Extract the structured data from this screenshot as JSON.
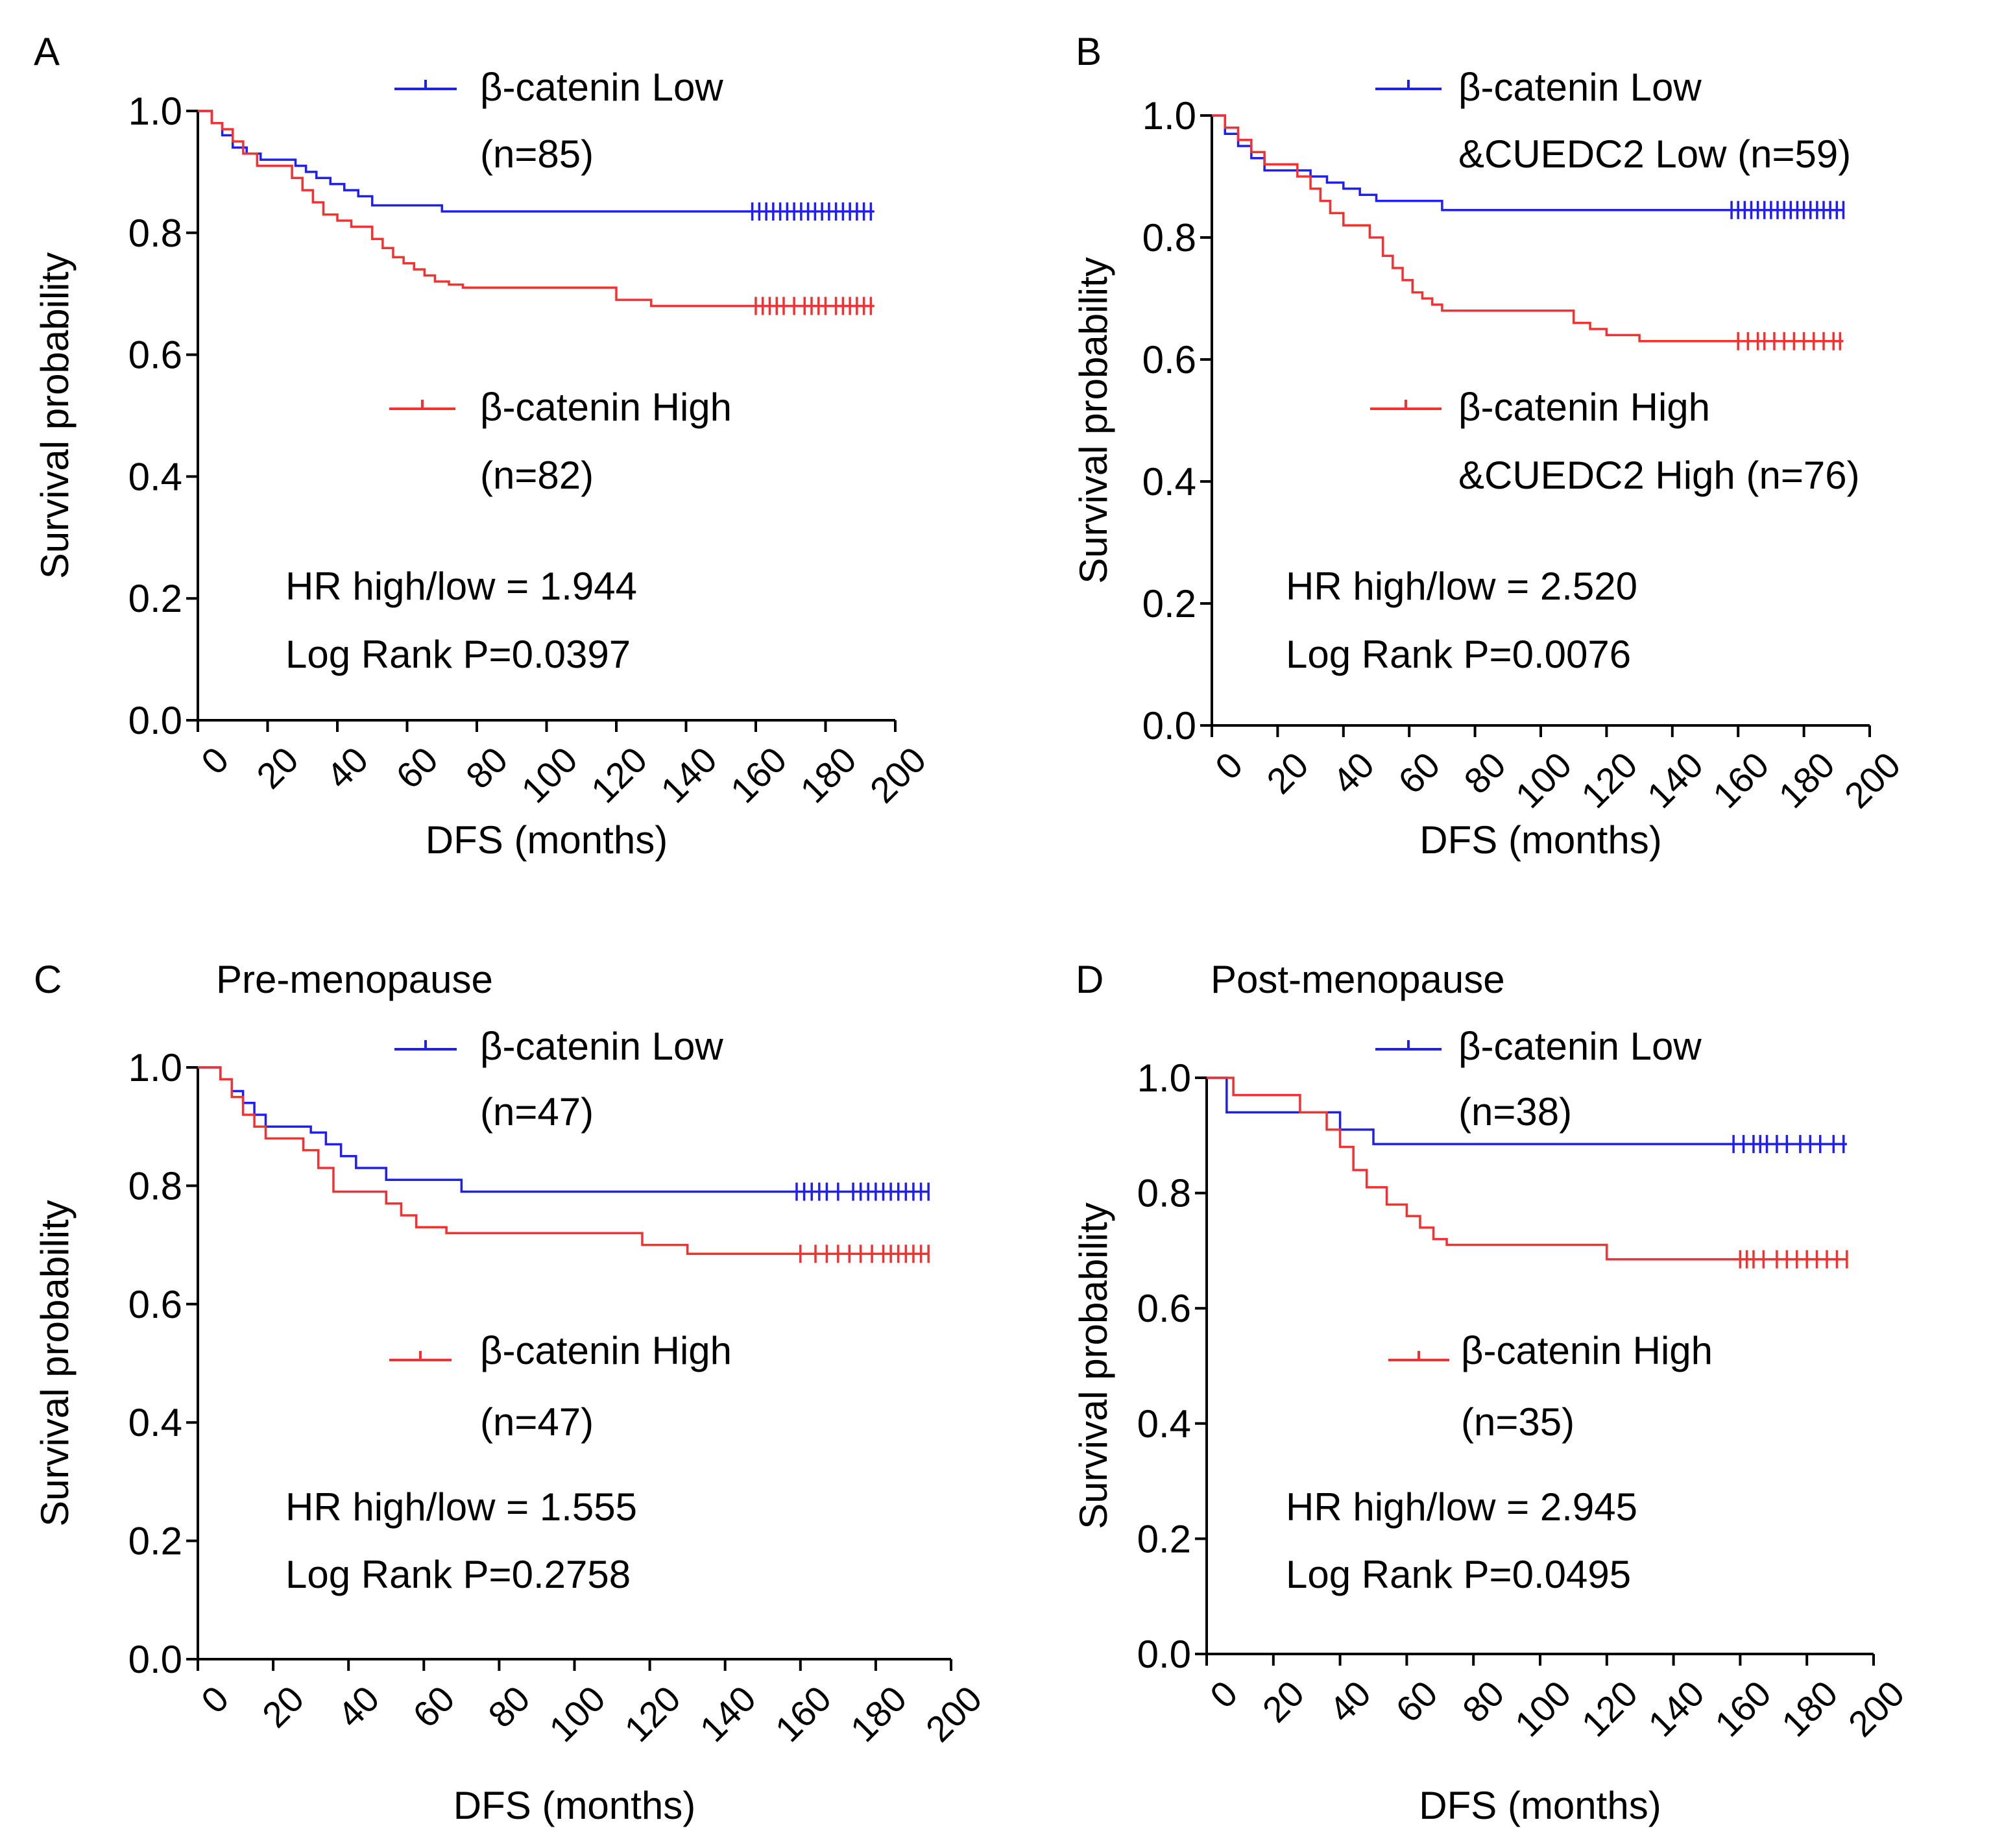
{
  "colors": {
    "low": "#1f1ff5",
    "high": "#f53030",
    "axis": "#000000"
  },
  "chart_data": [
    {
      "type": "line",
      "panel": "A",
      "title": "",
      "xlabel": "DFS (months)",
      "ylabel": "Survival probability",
      "xlim": [
        0,
        200
      ],
      "ylim": [
        0,
        1.0
      ],
      "xticks": [
        0,
        20,
        40,
        60,
        80,
        100,
        120,
        140,
        160,
        180,
        200
      ],
      "yticks": [
        0.0,
        0.2,
        0.4,
        0.6,
        0.8,
        1.0
      ],
      "series": [
        {
          "name": "β-catenin Low",
          "color_key": "low",
          "legend": [
            "β-catenin Low",
            "(n=85)"
          ],
          "x": [
            0,
            4,
            7,
            10,
            14,
            18,
            28,
            31,
            34,
            38,
            42,
            46,
            50,
            70,
            194
          ],
          "y": [
            1.0,
            0.98,
            0.96,
            0.94,
            0.93,
            0.92,
            0.91,
            0.9,
            0.89,
            0.88,
            0.87,
            0.86,
            0.845,
            0.835,
            0.835
          ],
          "censor_x": [
            159,
            161,
            163,
            165,
            167,
            169,
            171,
            173,
            175,
            177,
            179,
            181,
            183,
            185,
            187,
            189,
            191,
            193
          ]
        },
        {
          "name": "β-catenin High",
          "color_key": "high",
          "legend": [
            "β-catenin High",
            "(n=82)"
          ],
          "x": [
            0,
            4,
            7,
            10,
            13,
            17,
            27,
            30,
            33,
            36,
            40,
            44,
            50,
            53,
            56,
            59,
            62,
            65,
            68,
            72,
            76,
            120,
            130,
            194
          ],
          "y": [
            1.0,
            0.98,
            0.97,
            0.95,
            0.93,
            0.91,
            0.89,
            0.87,
            0.85,
            0.83,
            0.82,
            0.81,
            0.79,
            0.775,
            0.76,
            0.75,
            0.74,
            0.73,
            0.72,
            0.715,
            0.71,
            0.69,
            0.68,
            0.68
          ],
          "censor_x": [
            160,
            162,
            164,
            166,
            168,
            171,
            174,
            176,
            178,
            180,
            183,
            185,
            187,
            189,
            191,
            193
          ]
        }
      ],
      "annotations": [
        "HR high/low = 1.944",
        "Log Rank P=0.0397"
      ]
    },
    {
      "type": "line",
      "panel": "B",
      "title": "",
      "xlabel": "DFS (months)",
      "ylabel": "Survival probability",
      "xlim": [
        0,
        200
      ],
      "ylim": [
        0,
        1.0
      ],
      "xticks": [
        0,
        20,
        40,
        60,
        80,
        100,
        120,
        140,
        160,
        180,
        200
      ],
      "yticks": [
        0.0,
        0.2,
        0.4,
        0.6,
        0.8,
        1.0
      ],
      "series": [
        {
          "name": "β-catenin Low &CUEDC2 Low",
          "color_key": "low",
          "legend": [
            "β-catenin Low",
            "&CUEDC2 Low  (n=59)"
          ],
          "x": [
            0,
            4,
            8,
            12,
            16,
            30,
            35,
            40,
            45,
            50,
            70,
            192
          ],
          "y": [
            1.0,
            0.97,
            0.95,
            0.93,
            0.91,
            0.9,
            0.89,
            0.88,
            0.87,
            0.86,
            0.845,
            0.845
          ],
          "censor_x": [
            158,
            160,
            162,
            164,
            166,
            168,
            170,
            172,
            174,
            176,
            178,
            180,
            182,
            184,
            186,
            188,
            190,
            192
          ]
        },
        {
          "name": "β-catenin High &CUEDC2 High",
          "color_key": "high",
          "legend": [
            "β-catenin High",
            "&CUEDC2 High (n=76)"
          ],
          "x": [
            0,
            4,
            8,
            12,
            16,
            26,
            30,
            33,
            36,
            40,
            48,
            52,
            55,
            58,
            61,
            64,
            67,
            70,
            73,
            76,
            110,
            115,
            120,
            130,
            192
          ],
          "y": [
            1.0,
            0.98,
            0.96,
            0.94,
            0.92,
            0.9,
            0.88,
            0.86,
            0.84,
            0.82,
            0.8,
            0.77,
            0.75,
            0.73,
            0.71,
            0.7,
            0.69,
            0.68,
            0.68,
            0.68,
            0.66,
            0.65,
            0.64,
            0.63,
            0.63
          ],
          "censor_x": [
            160,
            163,
            166,
            168,
            171,
            174,
            177,
            180,
            183,
            186,
            189,
            191
          ]
        }
      ],
      "annotations": [
        "HR high/low = 2.520",
        "Log Rank P=0.0076"
      ]
    },
    {
      "type": "line",
      "panel": "C",
      "title": "Pre-menopause",
      "xlabel": "DFS (months)",
      "ylabel": "Survival probability",
      "xlim": [
        0,
        200
      ],
      "ylim": [
        0,
        1.0
      ],
      "xticks": [
        0,
        20,
        40,
        60,
        80,
        100,
        120,
        140,
        160,
        180,
        200
      ],
      "yticks": [
        0.0,
        0.2,
        0.4,
        0.6,
        0.8,
        1.0
      ],
      "series": [
        {
          "name": "β-catenin Low",
          "color_key": "low",
          "legend": [
            "β-catenin Low",
            "(n=47)"
          ],
          "x": [
            0,
            6,
            9,
            12,
            15,
            18,
            30,
            34,
            38,
            42,
            50,
            70,
            194
          ],
          "y": [
            1.0,
            0.98,
            0.96,
            0.94,
            0.92,
            0.9,
            0.89,
            0.87,
            0.85,
            0.83,
            0.81,
            0.79,
            0.79
          ],
          "censor_x": [
            159,
            161,
            163,
            165,
            167,
            170,
            174,
            176,
            178,
            180,
            182,
            184,
            186,
            188,
            190,
            192,
            194
          ]
        },
        {
          "name": "β-catenin High",
          "color_key": "high",
          "legend": [
            "β-catenin High",
            "(n=47)"
          ],
          "x": [
            0,
            6,
            9,
            12,
            15,
            18,
            28,
            32,
            36,
            50,
            54,
            58,
            66,
            118,
            130,
            194
          ],
          "y": [
            1.0,
            0.98,
            0.95,
            0.92,
            0.9,
            0.88,
            0.86,
            0.83,
            0.79,
            0.77,
            0.75,
            0.73,
            0.72,
            0.7,
            0.685,
            0.685
          ],
          "censor_x": [
            160,
            164,
            167,
            170,
            173,
            176,
            179,
            182,
            184,
            186,
            188,
            190,
            192,
            194
          ]
        }
      ],
      "annotations": [
        "HR high/low = 1.555",
        "Log Rank P=0.2758"
      ]
    },
    {
      "type": "line",
      "panel": "D",
      "title": "Post-menopause",
      "xlabel": "DFS (months)",
      "ylabel": "Survival probability",
      "xlim": [
        0,
        200
      ],
      "ylim": [
        0,
        1.0
      ],
      "xticks": [
        0,
        20,
        40,
        60,
        80,
        100,
        120,
        140,
        160,
        180,
        200
      ],
      "yticks": [
        0,
        0.2,
        0.4,
        0.6,
        0.8,
        1.0
      ],
      "ytick_labels": [
        "0.0",
        "0.2",
        "0.4",
        "0.6",
        "0.8",
        "1.0"
      ],
      "series": [
        {
          "name": "β-catenin Low",
          "color_key": "low",
          "legend": [
            "β-catenin Low",
            "(n=38)"
          ],
          "x": [
            0,
            6,
            40,
            50,
            192
          ],
          "y": [
            1.0,
            0.94,
            0.91,
            0.885,
            0.885
          ],
          "censor_x": [
            158,
            161,
            164,
            166,
            168,
            171,
            174,
            178,
            181,
            184,
            188,
            191
          ]
        },
        {
          "name": "β-catenin High",
          "color_key": "high",
          "legend": [
            "β-catenin High",
            "(n=35)"
          ],
          "x": [
            0,
            8,
            28,
            36,
            40,
            44,
            48,
            54,
            60,
            64,
            68,
            72,
            120,
            192
          ],
          "y": [
            1.0,
            0.97,
            0.94,
            0.91,
            0.88,
            0.84,
            0.81,
            0.78,
            0.76,
            0.74,
            0.72,
            0.71,
            0.685,
            0.685
          ],
          "censor_x": [
            160,
            162,
            164,
            167,
            171,
            174,
            177,
            180,
            183,
            186,
            189,
            192
          ]
        }
      ],
      "annotations": [
        "HR high/low = 2.945",
        "Log Rank P=0.0495"
      ]
    }
  ]
}
